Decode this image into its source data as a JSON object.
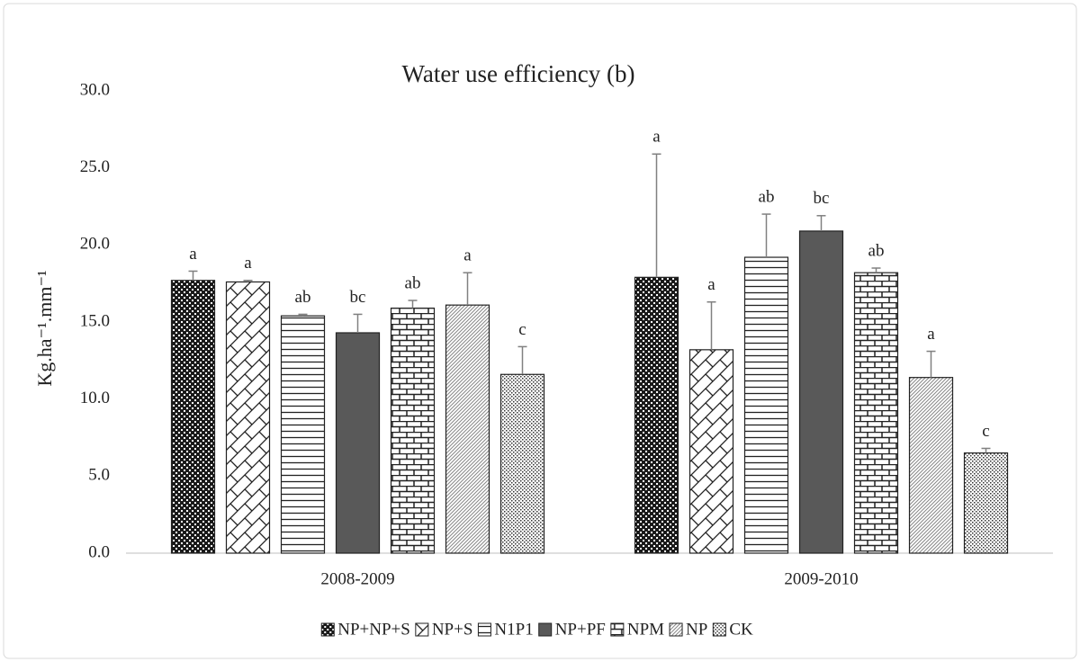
{
  "chart_data": {
    "type": "bar",
    "title": "Water use efficiency (b)",
    "y_label": "Kg.ha⁻¹.mm⁻¹",
    "categories": [
      "2008-2009",
      "2009-2010"
    ],
    "ylim": [
      0,
      30
    ],
    "yticks": [
      {
        "value": 0,
        "label": "0.0"
      },
      {
        "value": 5,
        "label": "5.0"
      },
      {
        "value": 10,
        "label": "10.0"
      },
      {
        "value": 15,
        "label": "15.0"
      },
      {
        "value": 20,
        "label": "20.0"
      },
      {
        "value": 25,
        "label": "25.0"
      },
      {
        "value": 30,
        "label": "30.0"
      }
    ],
    "grid": false,
    "legend": "bottom",
    "series": [
      {
        "name": "NP+NP+S",
        "pattern": "checker",
        "values": [
          17.7,
          17.9
        ],
        "errors": [
          0.6,
          8.0
        ],
        "letters": [
          "a",
          "a"
        ]
      },
      {
        "name": "NP+S",
        "pattern": "zigzag",
        "values": [
          17.6,
          13.2
        ],
        "errors": [
          0.1,
          3.1
        ],
        "letters": [
          "a",
          "a"
        ]
      },
      {
        "name": "N1P1",
        "pattern": "hlines",
        "values": [
          15.4,
          19.2
        ],
        "errors": [
          0.1,
          2.8
        ],
        "letters": [
          "ab",
          "ab"
        ]
      },
      {
        "name": "NP+PF",
        "pattern": "solid",
        "values": [
          14.3,
          20.9
        ],
        "errors": [
          1.2,
          1.0
        ],
        "letters": [
          "bc",
          "bc"
        ]
      },
      {
        "name": "NPM",
        "pattern": "brick",
        "values": [
          15.9,
          18.2
        ],
        "errors": [
          0.5,
          0.3
        ],
        "letters": [
          "ab",
          "ab"
        ]
      },
      {
        "name": "NP",
        "pattern": "diag",
        "values": [
          16.1,
          11.4
        ],
        "errors": [
          2.1,
          1.7
        ],
        "letters": [
          "a",
          "a"
        ]
      },
      {
        "name": "CK",
        "pattern": "dots",
        "values": [
          11.6,
          6.5
        ],
        "errors": [
          1.8,
          0.3
        ],
        "letters": [
          "c",
          "c"
        ]
      }
    ]
  }
}
